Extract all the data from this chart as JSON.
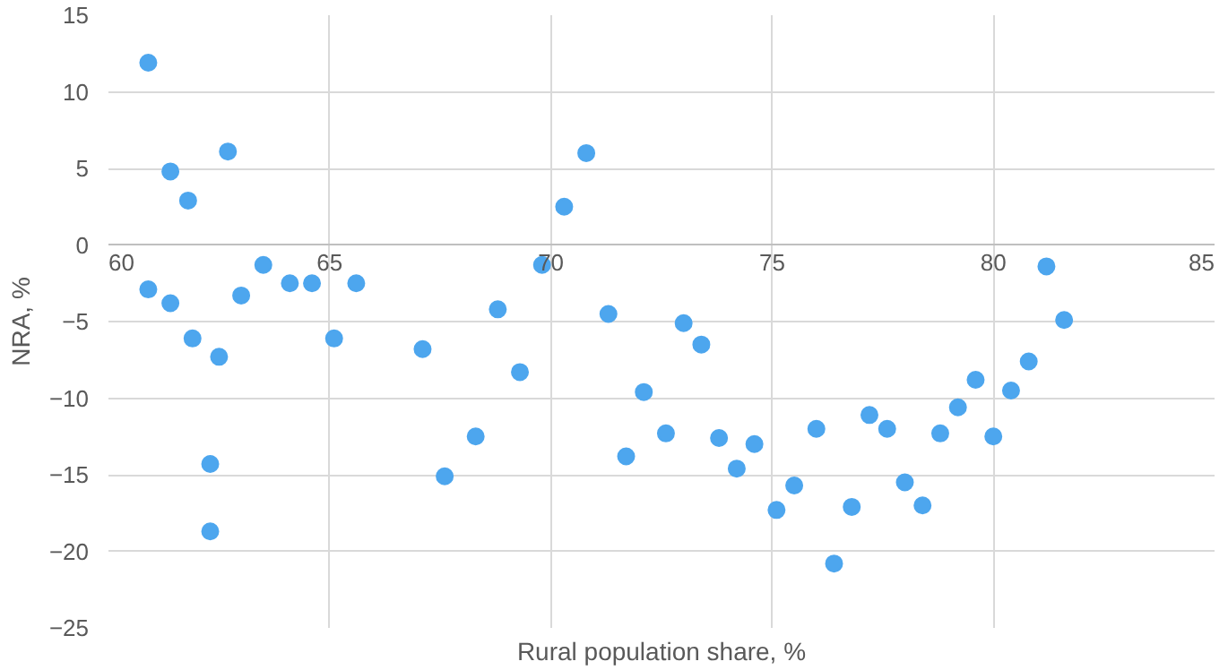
{
  "chart_data": {
    "type": "scatter",
    "xlabel": "Rural population share, %",
    "ylabel": "NRA, %",
    "xlim": [
      60,
      85
    ],
    "ylim": [
      -25,
      15
    ],
    "xticks": [
      60,
      65,
      70,
      75,
      80,
      85
    ],
    "yticks": [
      -25,
      -20,
      -15,
      -10,
      -5,
      0,
      5,
      10,
      15
    ],
    "grid": true,
    "marker": "circle",
    "series": [
      {
        "color": "#4da6ee",
        "x": [
          60.9,
          60.9,
          61.4,
          61.4,
          61.8,
          61.9,
          62.3,
          62.3,
          62.5,
          62.7,
          63.0,
          63.5,
          64.1,
          64.6,
          65.1,
          65.6,
          67.1,
          67.6,
          68.3,
          68.8,
          69.3,
          69.8,
          70.3,
          70.8,
          71.3,
          71.7,
          72.1,
          72.6,
          73.0,
          73.4,
          73.8,
          74.2,
          74.6,
          75.1,
          75.5,
          76.0,
          76.4,
          76.8,
          77.2,
          77.6,
          78.0,
          78.4,
          78.8,
          79.2,
          79.6,
          80.0,
          80.4,
          80.8,
          81.2,
          81.6
        ],
        "values": [
          11.9,
          -2.9,
          4.8,
          -3.8,
          2.9,
          -6.1,
          -18.7,
          -14.3,
          -7.3,
          6.1,
          -3.3,
          -1.3,
          -2.5,
          -2.5,
          -6.1,
          -2.5,
          -6.8,
          -15.1,
          -12.5,
          -4.2,
          -8.3,
          -1.3,
          2.5,
          6.0,
          -4.5,
          -13.8,
          -9.6,
          -12.3,
          -5.1,
          -6.5,
          -12.6,
          -14.6,
          -13.0,
          -17.3,
          -15.7,
          -12.0,
          -20.8,
          -17.1,
          -11.1,
          -12.0,
          -15.5,
          -17.0,
          -12.3,
          -10.6,
          -8.8,
          -12.5,
          -9.5,
          -7.6,
          -1.4,
          -4.9
        ]
      }
    ]
  }
}
